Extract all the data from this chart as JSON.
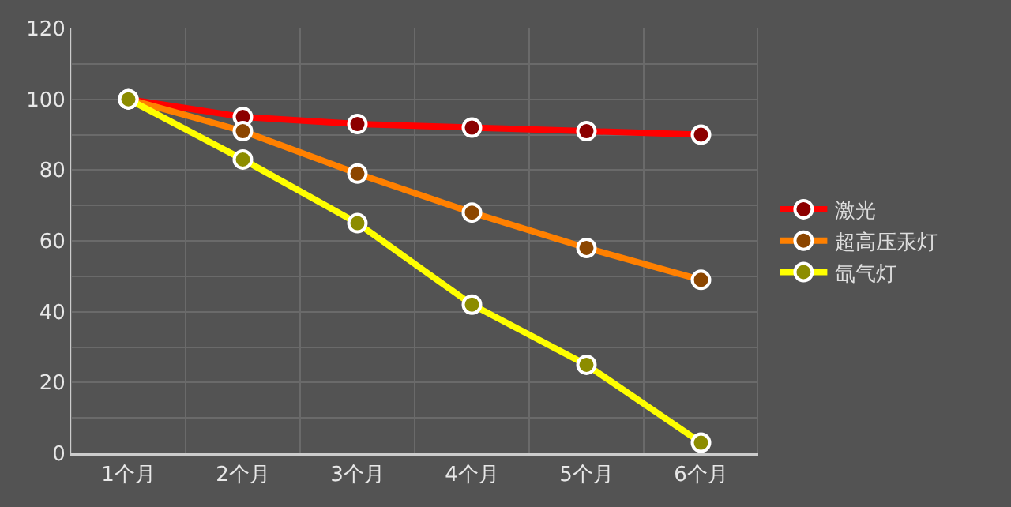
{
  "chart_data": {
    "type": "line",
    "categories": [
      "1个月",
      "2个月",
      "3个月",
      "4个月",
      "5个月",
      "6个月"
    ],
    "series": [
      {
        "name": "激光",
        "color": "#ff0000",
        "values": [
          100,
          95,
          93,
          92,
          91,
          90
        ]
      },
      {
        "name": "超高压汞灯",
        "color": "#ff8000",
        "values": [
          100,
          91,
          79,
          68,
          58,
          49
        ]
      },
      {
        "name": "氙气灯",
        "color": "#ffff00",
        "values": [
          100,
          83,
          65,
          42,
          25,
          3
        ]
      }
    ],
    "ylim": [
      0,
      120
    ],
    "yticks": [
      0,
      {
        "value": 10,
        "label": null
      },
      20,
      {
        "value": 30,
        "label": null
      },
      40,
      {
        "value": 50,
        "label": null
      },
      60,
      {
        "value": 70,
        "label": null
      },
      80,
      {
        "value": 90,
        "label": null
      },
      100,
      {
        "value": 110,
        "label": null
      },
      120
    ],
    "grid": true,
    "legend": "right",
    "marker": "circle",
    "line_style": "solid"
  }
}
